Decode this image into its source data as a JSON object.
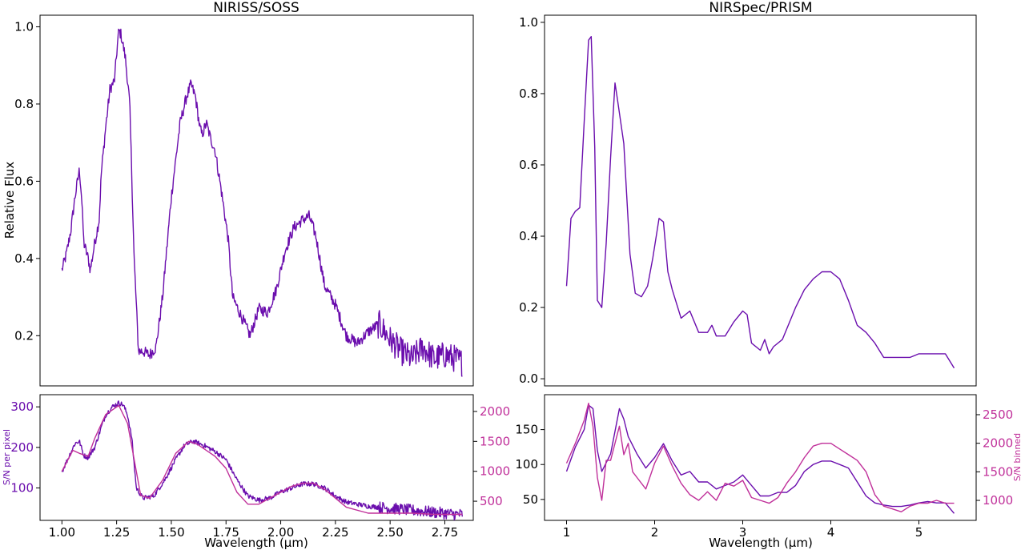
{
  "colors": {
    "primary": "#6a0dad",
    "secondary": "#c0309a",
    "axis": "#000000"
  },
  "chart_data": [
    {
      "type": "line",
      "panel": "left-top",
      "title": "NIRISS/SOSS",
      "xlabel": "",
      "ylabel": "Relative Flux",
      "xlim": [
        0.9,
        2.88
      ],
      "ylim": [
        0.07,
        1.03
      ],
      "xticks": [],
      "yticks": [
        0.2,
        0.4,
        0.6,
        0.8,
        1.0
      ],
      "ytick_labels": [
        "0.2",
        "0.4",
        "0.6",
        "0.8",
        "1.0"
      ],
      "series": [
        {
          "color": "#6a0dad",
          "noise": 0.015,
          "x": [
            1.0,
            1.02,
            1.04,
            1.06,
            1.08,
            1.09,
            1.1,
            1.12,
            1.13,
            1.15,
            1.17,
            1.18,
            1.2,
            1.22,
            1.24,
            1.25,
            1.26,
            1.27,
            1.29,
            1.31,
            1.33,
            1.35,
            1.37,
            1.4,
            1.43,
            1.46,
            1.5,
            1.54,
            1.57,
            1.59,
            1.61,
            1.63,
            1.64,
            1.66,
            1.68,
            1.7,
            1.73,
            1.76,
            1.78,
            1.82,
            1.86,
            1.9,
            1.94,
            1.98,
            2.02,
            2.06,
            2.1,
            2.13,
            2.16,
            2.2,
            2.25,
            2.3,
            2.35,
            2.4,
            2.45,
            2.5,
            2.55,
            2.6,
            2.65,
            2.7,
            2.75,
            2.8,
            2.83
          ],
          "y": [
            0.37,
            0.41,
            0.47,
            0.56,
            0.63,
            0.56,
            0.44,
            0.4,
            0.37,
            0.44,
            0.5,
            0.62,
            0.74,
            0.84,
            0.86,
            0.93,
            0.99,
            0.98,
            0.92,
            0.8,
            0.4,
            0.16,
            0.16,
            0.15,
            0.17,
            0.3,
            0.56,
            0.75,
            0.82,
            0.85,
            0.82,
            0.74,
            0.72,
            0.75,
            0.71,
            0.68,
            0.57,
            0.45,
            0.3,
            0.25,
            0.2,
            0.27,
            0.26,
            0.32,
            0.42,
            0.48,
            0.5,
            0.51,
            0.46,
            0.33,
            0.28,
            0.2,
            0.18,
            0.21,
            0.23,
            0.19,
            0.16,
            0.14,
            0.17,
            0.14,
            0.15,
            0.14,
            0.13
          ]
        }
      ]
    },
    {
      "type": "line",
      "panel": "left-bottom",
      "title": "",
      "xlabel": "Wavelength (μm)",
      "ylabel": "S/N per pixel",
      "ylabel_right": "",
      "xlim": [
        0.9,
        2.88
      ],
      "ylim": [
        20,
        330
      ],
      "ylim_right": [
        180,
        2280
      ],
      "xticks": [
        1.0,
        1.25,
        1.5,
        1.75,
        2.0,
        2.25,
        2.5,
        2.75
      ],
      "xtick_labels": [
        "1.00",
        "1.25",
        "1.50",
        "1.75",
        "2.00",
        "2.25",
        "2.50",
        "2.75"
      ],
      "yticks": [
        100,
        200,
        300
      ],
      "ytick_labels": [
        "100",
        "200",
        "300"
      ],
      "yticks_right": [
        500,
        1000,
        1500,
        2000
      ],
      "ytick_labels_right": [
        "500",
        "1000",
        "1500",
        "2000"
      ],
      "series": [
        {
          "color": "#6a0dad",
          "axis": "left",
          "noise": 6,
          "x": [
            1.0,
            1.03,
            1.06,
            1.08,
            1.1,
            1.12,
            1.15,
            1.18,
            1.2,
            1.23,
            1.26,
            1.28,
            1.3,
            1.32,
            1.34,
            1.37,
            1.42,
            1.47,
            1.52,
            1.56,
            1.6,
            1.65,
            1.7,
            1.75,
            1.8,
            1.85,
            1.9,
            1.95,
            2.0,
            2.05,
            2.1,
            2.15,
            2.2,
            2.25,
            2.3,
            2.4,
            2.5,
            2.6,
            2.7,
            2.8,
            2.83
          ],
          "y": [
            140,
            175,
            210,
            215,
            180,
            175,
            200,
            250,
            280,
            300,
            310,
            305,
            280,
            220,
            100,
            75,
            80,
            120,
            170,
            205,
            215,
            205,
            190,
            170,
            120,
            80,
            70,
            75,
            90,
            100,
            110,
            110,
            100,
            80,
            65,
            55,
            50,
            45,
            40,
            35,
            35
          ]
        },
        {
          "color": "#c0309a",
          "axis": "right",
          "noise": 0,
          "x": [
            1.0,
            1.05,
            1.08,
            1.12,
            1.15,
            1.2,
            1.26,
            1.3,
            1.33,
            1.36,
            1.4,
            1.46,
            1.52,
            1.58,
            1.62,
            1.7,
            1.75,
            1.8,
            1.85,
            1.9,
            1.95,
            2.0,
            2.05,
            2.1,
            2.15,
            2.2,
            2.25,
            2.3,
            2.4,
            2.5,
            2.6,
            2.7,
            2.8,
            2.83
          ],
          "y": [
            1000,
            1350,
            1300,
            1250,
            1550,
            1950,
            2100,
            1800,
            1200,
            600,
            550,
            850,
            1300,
            1500,
            1450,
            1250,
            1050,
            650,
            450,
            450,
            550,
            650,
            750,
            800,
            800,
            700,
            550,
            400,
            300,
            300,
            300,
            280,
            280,
            280
          ]
        }
      ]
    },
    {
      "type": "line",
      "panel": "right-top",
      "title": "NIRSpec/PRISM",
      "xlabel": "",
      "ylabel": "",
      "xlim": [
        0.75,
        5.65
      ],
      "ylim": [
        -0.02,
        1.02
      ],
      "xticks": [],
      "yticks": [
        0.0,
        0.2,
        0.4,
        0.6,
        0.8,
        1.0
      ],
      "ytick_labels": [
        "0.0",
        "0.2",
        "0.4",
        "0.6",
        "0.8",
        "1.0"
      ],
      "series": [
        {
          "color": "#6a0dad",
          "noise": 0,
          "x": [
            1.0,
            1.05,
            1.1,
            1.15,
            1.2,
            1.25,
            1.28,
            1.32,
            1.35,
            1.4,
            1.45,
            1.5,
            1.55,
            1.58,
            1.65,
            1.72,
            1.78,
            1.85,
            1.92,
            1.98,
            2.05,
            2.1,
            2.15,
            2.2,
            2.3,
            2.4,
            2.5,
            2.6,
            2.65,
            2.7,
            2.8,
            2.9,
            3.0,
            3.05,
            3.1,
            3.2,
            3.25,
            3.3,
            3.35,
            3.45,
            3.6,
            3.7,
            3.8,
            3.9,
            4.0,
            4.1,
            4.2,
            4.3,
            4.4,
            4.5,
            4.6,
            4.7,
            4.8,
            4.9,
            5.0,
            5.1,
            5.2,
            5.3,
            5.4
          ],
          "y": [
            0.26,
            0.45,
            0.47,
            0.48,
            0.72,
            0.95,
            0.96,
            0.65,
            0.22,
            0.2,
            0.38,
            0.62,
            0.83,
            0.78,
            0.66,
            0.35,
            0.24,
            0.23,
            0.26,
            0.34,
            0.45,
            0.44,
            0.3,
            0.25,
            0.17,
            0.19,
            0.13,
            0.13,
            0.15,
            0.12,
            0.12,
            0.16,
            0.19,
            0.18,
            0.1,
            0.08,
            0.11,
            0.07,
            0.09,
            0.11,
            0.2,
            0.25,
            0.28,
            0.3,
            0.3,
            0.28,
            0.22,
            0.15,
            0.13,
            0.1,
            0.06,
            0.06,
            0.06,
            0.06,
            0.07,
            0.07,
            0.07,
            0.07,
            0.03
          ]
        }
      ]
    },
    {
      "type": "line",
      "panel": "right-bottom",
      "title": "",
      "xlabel": "Wavelength (μm)",
      "ylabel": "",
      "ylabel_right": "S/N binned",
      "xlim": [
        0.75,
        5.65
      ],
      "ylim": [
        20,
        200
      ],
      "ylim_right": [
        650,
        2850
      ],
      "xticks": [
        1,
        2,
        3,
        4,
        5
      ],
      "xtick_labels": [
        "1",
        "2",
        "3",
        "4",
        "5"
      ],
      "yticks": [
        50,
        100,
        150
      ],
      "ytick_labels": [
        "50",
        "100",
        "150"
      ],
      "yticks_right": [
        1000,
        1500,
        2000,
        2500
      ],
      "ytick_labels_right": [
        "1000",
        "1500",
        "2000",
        "2500"
      ],
      "series": [
        {
          "color": "#6a0dad",
          "axis": "left",
          "noise": 0,
          "x": [
            1.0,
            1.1,
            1.2,
            1.25,
            1.3,
            1.35,
            1.4,
            1.5,
            1.6,
            1.65,
            1.7,
            1.8,
            1.9,
            2.0,
            2.1,
            2.2,
            2.3,
            2.4,
            2.5,
            2.6,
            2.7,
            2.8,
            2.9,
            3.0,
            3.1,
            3.2,
            3.3,
            3.4,
            3.5,
            3.6,
            3.7,
            3.8,
            3.9,
            4.0,
            4.1,
            4.2,
            4.3,
            4.4,
            4.5,
            4.6,
            4.7,
            4.8,
            4.9,
            5.0,
            5.1,
            5.2,
            5.3,
            5.4
          ],
          "y": [
            90,
            125,
            150,
            185,
            180,
            120,
            90,
            115,
            180,
            165,
            140,
            115,
            95,
            110,
            130,
            105,
            85,
            90,
            75,
            75,
            65,
            70,
            75,
            85,
            70,
            55,
            55,
            60,
            60,
            70,
            90,
            100,
            105,
            105,
            100,
            95,
            75,
            55,
            45,
            42,
            40,
            40,
            42,
            45,
            47,
            45,
            45,
            30
          ]
        },
        {
          "color": "#c0309a",
          "axis": "right",
          "noise": 0,
          "x": [
            1.0,
            1.1,
            1.2,
            1.25,
            1.3,
            1.35,
            1.4,
            1.45,
            1.5,
            1.6,
            1.65,
            1.7,
            1.75,
            1.8,
            1.9,
            2.0,
            2.1,
            2.2,
            2.3,
            2.4,
            2.5,
            2.6,
            2.7,
            2.8,
            2.9,
            3.0,
            3.1,
            3.2,
            3.3,
            3.4,
            3.5,
            3.6,
            3.7,
            3.8,
            3.9,
            4.0,
            4.1,
            4.2,
            4.3,
            4.4,
            4.5,
            4.6,
            4.7,
            4.8,
            4.9,
            5.0,
            5.1,
            5.2,
            5.3,
            5.4
          ],
          "y": [
            1650,
            2000,
            2400,
            2700,
            2300,
            1400,
            1000,
            1700,
            1700,
            2300,
            1800,
            2000,
            1500,
            1400,
            1200,
            1650,
            1950,
            1600,
            1300,
            1100,
            1000,
            1150,
            1000,
            1300,
            1250,
            1350,
            1050,
            1000,
            950,
            1050,
            1300,
            1500,
            1750,
            1950,
            2000,
            2000,
            1900,
            1800,
            1700,
            1500,
            1100,
            900,
            850,
            800,
            900,
            950,
            950,
            1000,
            950,
            950
          ]
        }
      ]
    }
  ]
}
